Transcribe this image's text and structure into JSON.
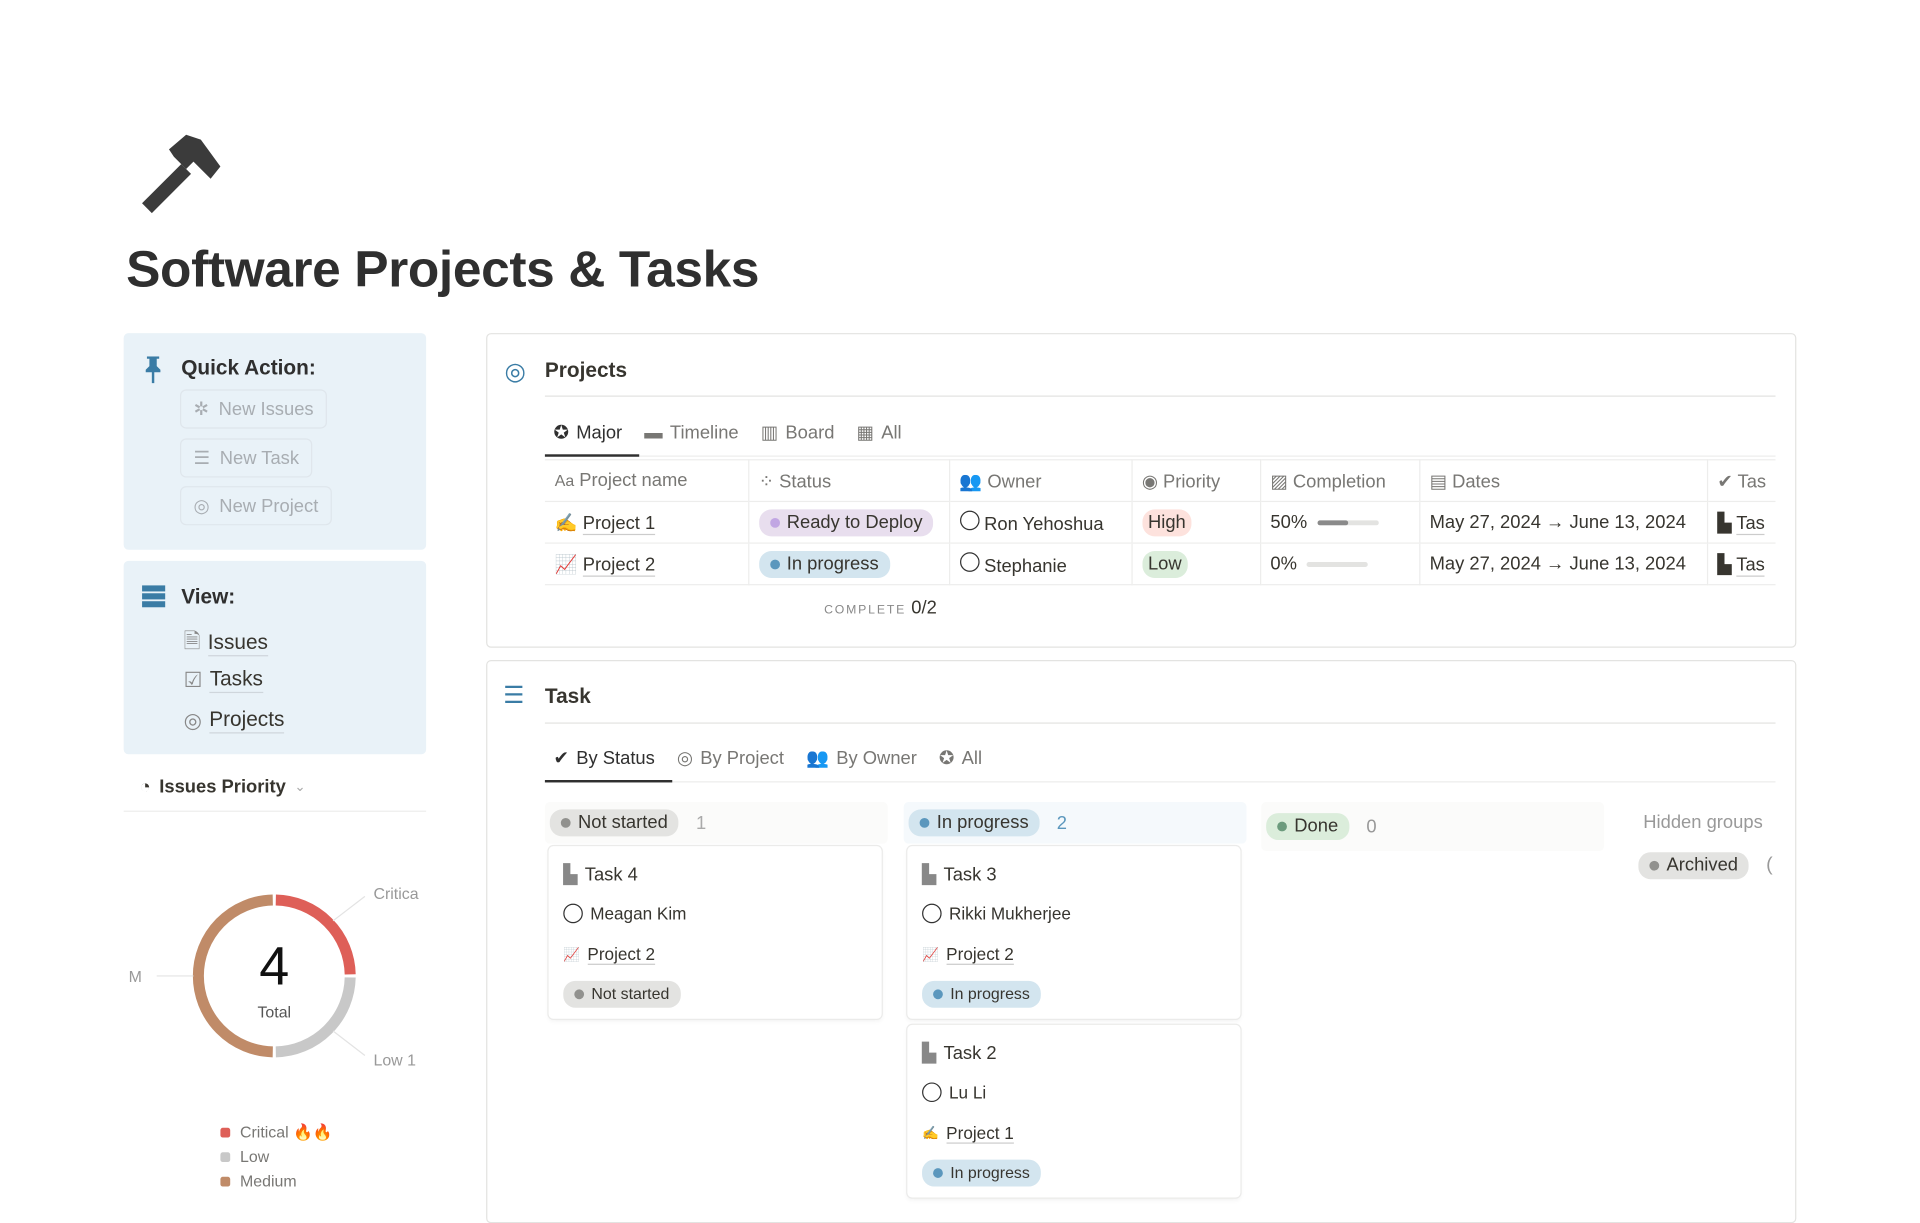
{
  "page": {
    "title": "Software Projects & Tasks",
    "icon": "hammer-icon"
  },
  "quick_action": {
    "heading": "Quick Action:",
    "icon": "pushpin-icon",
    "buttons": [
      {
        "label": "New Issues",
        "icon": "bug-icon"
      },
      {
        "label": "New Task",
        "icon": "checklist-icon"
      },
      {
        "label": "New Project",
        "icon": "target-icon"
      }
    ]
  },
  "view": {
    "heading": "View:",
    "icon": "stack-icon",
    "links": [
      {
        "label": "Issues",
        "icon": "document-link-icon"
      },
      {
        "label": "Tasks",
        "icon": "checkbox-link-icon"
      },
      {
        "label": "Projects",
        "icon": "target-link-icon"
      }
    ]
  },
  "issues_priority": {
    "label": "Issues Priority",
    "icon": "pie-chart-icon"
  },
  "chart_data": {
    "type": "pie",
    "center_value": "4",
    "center_label": "Total",
    "categories": [
      "Critical",
      "Low",
      "Medium"
    ],
    "values": [
      1,
      1,
      2
    ],
    "colors": [
      "#de5f58",
      "#c8c8c8",
      "#c08b68"
    ],
    "slice_labels": [
      "Critica",
      "Low 1",
      "M"
    ],
    "legend": [
      "Critical 🔥🔥",
      "Low",
      "Medium"
    ],
    "legend_placement": "bottom"
  },
  "projects": {
    "title": "Projects",
    "tabs": [
      "Major",
      "Timeline",
      "Board",
      "All"
    ],
    "active_tab": "Major",
    "columns": [
      "Project name",
      "Status",
      "Owner",
      "Priority",
      "Completion",
      "Dates",
      "Tas"
    ],
    "rows": [
      {
        "name": "Project 1",
        "emoji": "✍️",
        "status": "Ready to Deploy",
        "status_color": "#e8deee",
        "owner": "Ron Yehoshua",
        "priority": "High",
        "priority_color": "#fde2dd",
        "completion": "50%",
        "completion_value": 0.5,
        "dates": "May 27, 2024 → June 13, 2024",
        "tasks": "Tas"
      },
      {
        "name": "Project 2",
        "emoji": "📈",
        "status": "In progress",
        "status_color": "#d3e5ef",
        "owner": "Stephanie",
        "priority": "Low",
        "priority_color": "#dbeddb",
        "completion": "0%",
        "completion_value": 0,
        "dates": "May 27, 2024 → June 13, 2024",
        "tasks": "Tas"
      }
    ],
    "footer_label": "COMPLETE",
    "footer_value": "0/2"
  },
  "tasks": {
    "title": "Task",
    "tabs": [
      "By Status",
      "By Project",
      "By Owner",
      "All"
    ],
    "active_tab": "By Status",
    "groups": [
      {
        "label": "Not started",
        "count": "1",
        "cards": [
          {
            "title": "Task 4",
            "owner": "Meagan Kim",
            "project": "Project 2",
            "project_emoji": "📈",
            "status": "Not started"
          }
        ]
      },
      {
        "label": "In progress",
        "count": "2",
        "cards": [
          {
            "title": "Task 3",
            "owner": "Rikki Mukherjee",
            "project": "Project 2",
            "project_emoji": "📈",
            "status": "In progress"
          },
          {
            "title": "Task 2",
            "owner": "Lu Li",
            "project": "Project 1",
            "project_emoji": "✍️",
            "status": "In progress"
          }
        ]
      },
      {
        "label": "Done",
        "count": "0",
        "cards": []
      }
    ],
    "hidden_groups_label": "Hidden groups",
    "archived_label": "Archived",
    "archived_count": "("
  }
}
